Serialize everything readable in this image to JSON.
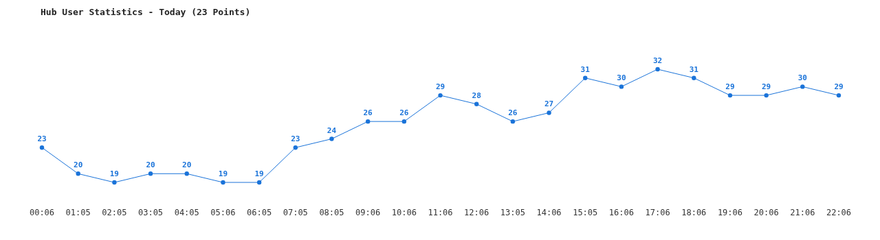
{
  "chart_data": {
    "type": "line",
    "title": "Hub User Statistics - Today (23 Points)",
    "categories": [
      "00:06",
      "01:05",
      "02:05",
      "03:05",
      "04:05",
      "05:06",
      "06:05",
      "07:05",
      "08:05",
      "09:06",
      "10:06",
      "11:06",
      "12:06",
      "13:05",
      "14:06",
      "15:05",
      "16:06",
      "17:06",
      "18:06",
      "19:06",
      "20:06",
      "21:06",
      "22:06"
    ],
    "series": [
      {
        "color": "#1a73d9",
        "values": [
          23,
          20,
          19,
          20,
          20,
          19,
          19,
          23,
          24,
          26,
          26,
          29,
          28,
          26,
          27,
          31,
          30,
          32,
          31,
          29,
          29,
          30,
          29
        ]
      }
    ],
    "data_labels": true,
    "marker": "circle",
    "line_style": "solid"
  }
}
